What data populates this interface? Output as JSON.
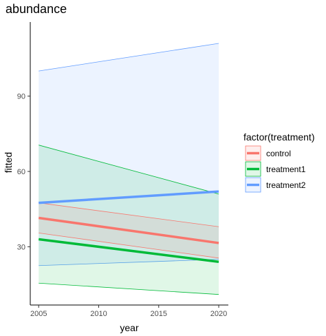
{
  "chart_data": {
    "type": "line",
    "title": "abundance",
    "xlabel": "year",
    "ylabel": "fitted",
    "xlim": [
      2004.3,
      2020.8
    ],
    "ylim": [
      6.8,
      119.5
    ],
    "x_ticks": [
      2005,
      2010,
      2015,
      2020
    ],
    "y_ticks": [
      30,
      60,
      90
    ],
    "grid": false,
    "legend": {
      "title": "factor(treatment)",
      "position": "right"
    },
    "x": [
      2005,
      2020
    ],
    "series": [
      {
        "name": "control",
        "color": "#F8766D",
        "fill": "#F8766D",
        "values": [
          41.5,
          31.5
        ],
        "lower": [
          35.5,
          25.5
        ],
        "upper": [
          47.5,
          38.0
        ]
      },
      {
        "name": "treatment1",
        "color": "#00BA38",
        "fill": "#00BA38",
        "values": [
          33.0,
          24.0
        ],
        "lower": [
          15.5,
          11.0
        ],
        "upper": [
          70.5,
          51.0
        ]
      },
      {
        "name": "treatment2",
        "color": "#619CFF",
        "fill": "#619CFF",
        "values": [
          47.5,
          52.0
        ],
        "lower": [
          22.5,
          25.0
        ],
        "upper": [
          100.0,
          111.0
        ]
      }
    ]
  }
}
